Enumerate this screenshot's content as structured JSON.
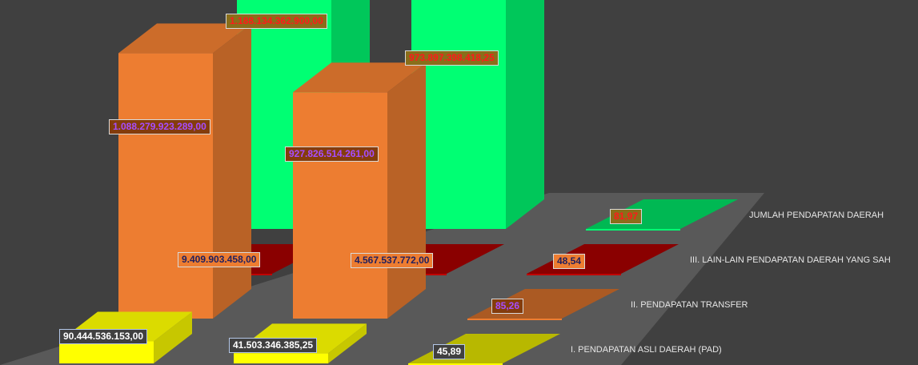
{
  "chart_data": {
    "type": "bar",
    "style": "3d-clustered-columns",
    "categories": [
      "",
      "",
      ""
    ],
    "series": [
      {
        "key": "pad",
        "name": "I.  PENDAPATAN ASLI DAERAH (PAD)",
        "color": "#ffff00",
        "values": [
          90444536153.0,
          41503346385.25,
          45.89
        ],
        "labels": [
          "90.444.536.153,00",
          "41.503.346.385,25",
          "45,89"
        ]
      },
      {
        "key": "transfer",
        "name": "II.  PENDAPATAN TRANSFER",
        "color": "#ed7d31",
        "values": [
          1088279923289.0,
          927826514261.0,
          85.26
        ],
        "labels": [
          "1.088.279.923.289,00",
          "927.826.514.261,00",
          "85,26"
        ]
      },
      {
        "key": "lainlain",
        "name": "III.  LAIN-LAIN PENDAPATAN DAERAH YANG SAH",
        "color": "#c00000",
        "values": [
          9409903458.0,
          4567537772.0,
          48.54
        ],
        "labels": [
          "9.409.903.458,00",
          "4.567.537.772,00",
          "48,54"
        ]
      },
      {
        "key": "jumlah",
        "name": "JUMLAH PENDAPATAN DAERAH",
        "color": "#00ff73",
        "values": [
          1188134362900.0,
          973897398418.25,
          81.97
        ],
        "labels": [
          "1.188.134.362.900,00",
          "973.897.398.418,25",
          "81,97"
        ]
      }
    ],
    "grid": false,
    "legend": "right, as axis labels"
  }
}
